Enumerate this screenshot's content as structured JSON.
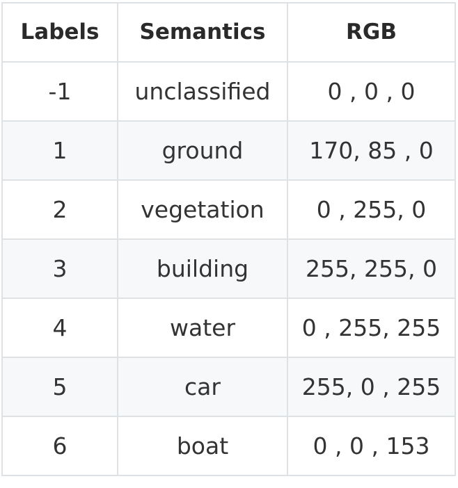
{
  "table": {
    "headers": [
      "Labels",
      "Semantics",
      "RGB"
    ],
    "rows": [
      {
        "label": "-1",
        "semantic": "unclassified",
        "rgb": "0 , 0 , 0"
      },
      {
        "label": "1",
        "semantic": "ground",
        "rgb": "170, 85 , 0"
      },
      {
        "label": "2",
        "semantic": "vegetation",
        "rgb": "0 , 255, 0"
      },
      {
        "label": "3",
        "semantic": "building",
        "rgb": "255, 255, 0"
      },
      {
        "label": "4",
        "semantic": "water",
        "rgb": "0 , 255, 255"
      },
      {
        "label": "5",
        "semantic": "car",
        "rgb": "255, 0 , 255"
      },
      {
        "label": "6",
        "semantic": "boat",
        "rgb": "0 , 0 , 153"
      }
    ]
  }
}
